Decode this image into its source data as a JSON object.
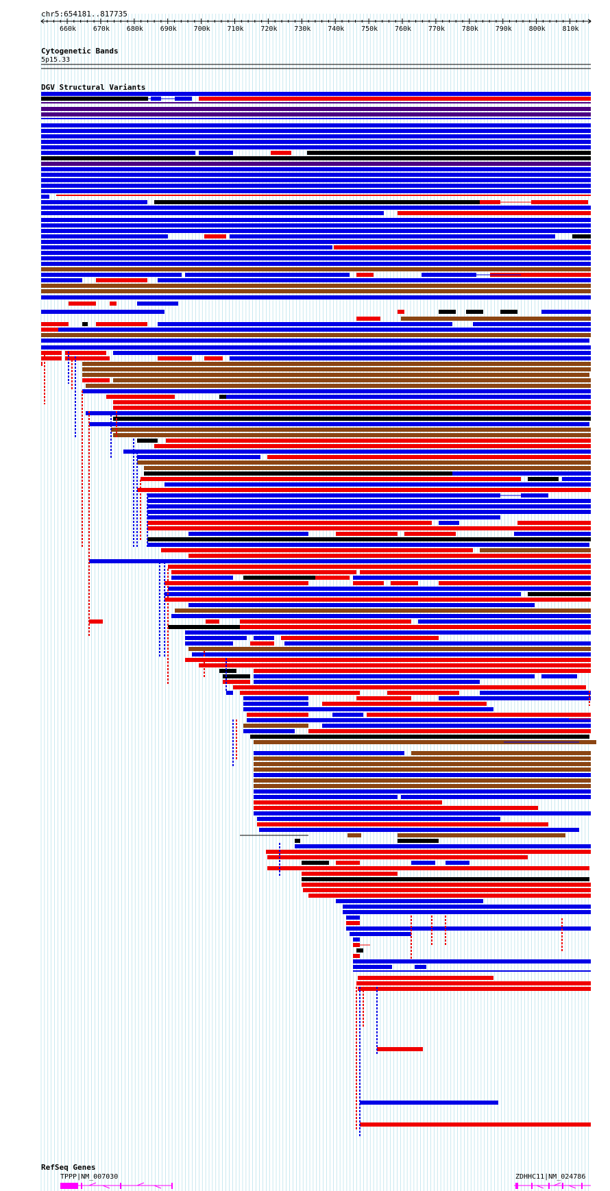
{
  "ruler": {
    "location": "chr5:654181..817735",
    "ticks": [
      "660k",
      "670k",
      "680k",
      "690k",
      "700k",
      "710k",
      "720k",
      "730k",
      "740k",
      "750k",
      "760k",
      "770k",
      "780k",
      "790k",
      "800k",
      "810k"
    ]
  },
  "tracks": {
    "cytoband_title": "Cytogenetic Bands",
    "cytoband_label": "5p15.33",
    "dgv_title": "DGV Structural Variants",
    "refseq_title": "RefSeq Genes"
  },
  "genes": [
    {
      "label": "TPPP|NM_007030"
    },
    {
      "label": "ZDHHC11|NM_024786"
    }
  ],
  "colors": {
    "blue": "#0000e6",
    "red": "#f00000",
    "black": "#000000",
    "brown": "#8b4513",
    "purple": "#4b0082",
    "magenta": "#ff00ff",
    "grid": "#87cede"
  }
}
